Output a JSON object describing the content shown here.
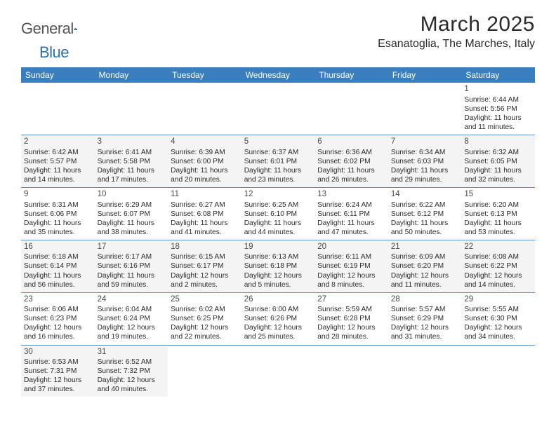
{
  "branding": {
    "logo_part1": "General",
    "logo_part2": "Blue",
    "logo_fill": "#2b6fb5",
    "logo_dark": "#1a3a5c"
  },
  "header": {
    "month_title": "March 2025",
    "location": "Esanatoglia, The Marches, Italy"
  },
  "style": {
    "header_bg": "#3a7ebd",
    "header_fg": "#ffffff",
    "border_color": "#5a8fc7",
    "shade_bg": "#f4f4f4",
    "text_color": "#2b2b2b",
    "daynum_color": "#4a4a4a",
    "title_fontsize": 30,
    "location_fontsize": 16,
    "th_fontsize": 12,
    "td_fontsize": 10
  },
  "weekdays": [
    "Sunday",
    "Monday",
    "Tuesday",
    "Wednesday",
    "Thursday",
    "Friday",
    "Saturday"
  ],
  "weeks": [
    [
      null,
      null,
      null,
      null,
      null,
      null,
      {
        "n": "1",
        "sr": "Sunrise: 6:44 AM",
        "ss": "Sunset: 5:56 PM",
        "dl": "Daylight: 11 hours and 11 minutes.",
        "shade": false
      }
    ],
    [
      {
        "n": "2",
        "sr": "Sunrise: 6:42 AM",
        "ss": "Sunset: 5:57 PM",
        "dl": "Daylight: 11 hours and 14 minutes.",
        "shade": true
      },
      {
        "n": "3",
        "sr": "Sunrise: 6:41 AM",
        "ss": "Sunset: 5:58 PM",
        "dl": "Daylight: 11 hours and 17 minutes.",
        "shade": true
      },
      {
        "n": "4",
        "sr": "Sunrise: 6:39 AM",
        "ss": "Sunset: 6:00 PM",
        "dl": "Daylight: 11 hours and 20 minutes.",
        "shade": true
      },
      {
        "n": "5",
        "sr": "Sunrise: 6:37 AM",
        "ss": "Sunset: 6:01 PM",
        "dl": "Daylight: 11 hours and 23 minutes.",
        "shade": true
      },
      {
        "n": "6",
        "sr": "Sunrise: 6:36 AM",
        "ss": "Sunset: 6:02 PM",
        "dl": "Daylight: 11 hours and 26 minutes.",
        "shade": true
      },
      {
        "n": "7",
        "sr": "Sunrise: 6:34 AM",
        "ss": "Sunset: 6:03 PM",
        "dl": "Daylight: 11 hours and 29 minutes.",
        "shade": true
      },
      {
        "n": "8",
        "sr": "Sunrise: 6:32 AM",
        "ss": "Sunset: 6:05 PM",
        "dl": "Daylight: 11 hours and 32 minutes.",
        "shade": true
      }
    ],
    [
      {
        "n": "9",
        "sr": "Sunrise: 6:31 AM",
        "ss": "Sunset: 6:06 PM",
        "dl": "Daylight: 11 hours and 35 minutes.",
        "shade": false
      },
      {
        "n": "10",
        "sr": "Sunrise: 6:29 AM",
        "ss": "Sunset: 6:07 PM",
        "dl": "Daylight: 11 hours and 38 minutes.",
        "shade": false
      },
      {
        "n": "11",
        "sr": "Sunrise: 6:27 AM",
        "ss": "Sunset: 6:08 PM",
        "dl": "Daylight: 11 hours and 41 minutes.",
        "shade": false
      },
      {
        "n": "12",
        "sr": "Sunrise: 6:25 AM",
        "ss": "Sunset: 6:10 PM",
        "dl": "Daylight: 11 hours and 44 minutes.",
        "shade": false
      },
      {
        "n": "13",
        "sr": "Sunrise: 6:24 AM",
        "ss": "Sunset: 6:11 PM",
        "dl": "Daylight: 11 hours and 47 minutes.",
        "shade": false
      },
      {
        "n": "14",
        "sr": "Sunrise: 6:22 AM",
        "ss": "Sunset: 6:12 PM",
        "dl": "Daylight: 11 hours and 50 minutes.",
        "shade": false
      },
      {
        "n": "15",
        "sr": "Sunrise: 6:20 AM",
        "ss": "Sunset: 6:13 PM",
        "dl": "Daylight: 11 hours and 53 minutes.",
        "shade": false
      }
    ],
    [
      {
        "n": "16",
        "sr": "Sunrise: 6:18 AM",
        "ss": "Sunset: 6:14 PM",
        "dl": "Daylight: 11 hours and 56 minutes.",
        "shade": true
      },
      {
        "n": "17",
        "sr": "Sunrise: 6:17 AM",
        "ss": "Sunset: 6:16 PM",
        "dl": "Daylight: 11 hours and 59 minutes.",
        "shade": true
      },
      {
        "n": "18",
        "sr": "Sunrise: 6:15 AM",
        "ss": "Sunset: 6:17 PM",
        "dl": "Daylight: 12 hours and 2 minutes.",
        "shade": true
      },
      {
        "n": "19",
        "sr": "Sunrise: 6:13 AM",
        "ss": "Sunset: 6:18 PM",
        "dl": "Daylight: 12 hours and 5 minutes.",
        "shade": true
      },
      {
        "n": "20",
        "sr": "Sunrise: 6:11 AM",
        "ss": "Sunset: 6:19 PM",
        "dl": "Daylight: 12 hours and 8 minutes.",
        "shade": true
      },
      {
        "n": "21",
        "sr": "Sunrise: 6:09 AM",
        "ss": "Sunset: 6:20 PM",
        "dl": "Daylight: 12 hours and 11 minutes.",
        "shade": true
      },
      {
        "n": "22",
        "sr": "Sunrise: 6:08 AM",
        "ss": "Sunset: 6:22 PM",
        "dl": "Daylight: 12 hours and 14 minutes.",
        "shade": true
      }
    ],
    [
      {
        "n": "23",
        "sr": "Sunrise: 6:06 AM",
        "ss": "Sunset: 6:23 PM",
        "dl": "Daylight: 12 hours and 16 minutes.",
        "shade": false
      },
      {
        "n": "24",
        "sr": "Sunrise: 6:04 AM",
        "ss": "Sunset: 6:24 PM",
        "dl": "Daylight: 12 hours and 19 minutes.",
        "shade": false
      },
      {
        "n": "25",
        "sr": "Sunrise: 6:02 AM",
        "ss": "Sunset: 6:25 PM",
        "dl": "Daylight: 12 hours and 22 minutes.",
        "shade": false
      },
      {
        "n": "26",
        "sr": "Sunrise: 6:00 AM",
        "ss": "Sunset: 6:26 PM",
        "dl": "Daylight: 12 hours and 25 minutes.",
        "shade": false
      },
      {
        "n": "27",
        "sr": "Sunrise: 5:59 AM",
        "ss": "Sunset: 6:28 PM",
        "dl": "Daylight: 12 hours and 28 minutes.",
        "shade": false
      },
      {
        "n": "28",
        "sr": "Sunrise: 5:57 AM",
        "ss": "Sunset: 6:29 PM",
        "dl": "Daylight: 12 hours and 31 minutes.",
        "shade": false
      },
      {
        "n": "29",
        "sr": "Sunrise: 5:55 AM",
        "ss": "Sunset: 6:30 PM",
        "dl": "Daylight: 12 hours and 34 minutes.",
        "shade": false
      }
    ],
    [
      {
        "n": "30",
        "sr": "Sunrise: 6:53 AM",
        "ss": "Sunset: 7:31 PM",
        "dl": "Daylight: 12 hours and 37 minutes.",
        "shade": true
      },
      {
        "n": "31",
        "sr": "Sunrise: 6:52 AM",
        "ss": "Sunset: 7:32 PM",
        "dl": "Daylight: 12 hours and 40 minutes.",
        "shade": true
      },
      null,
      null,
      null,
      null,
      null
    ]
  ]
}
